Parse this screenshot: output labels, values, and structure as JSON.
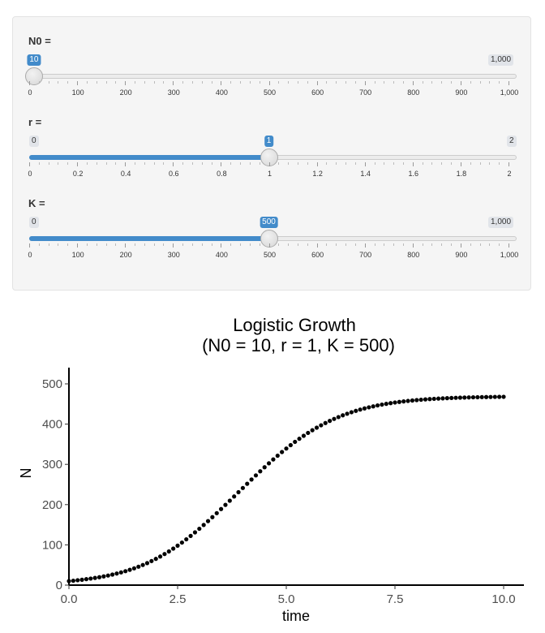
{
  "sliders": [
    {
      "label": "N0 =",
      "min": 0,
      "max": 1000,
      "min_label": "",
      "max_label": "1,000",
      "value": 10,
      "value_label": "10",
      "ticks": [
        "0",
        "100",
        "200",
        "300",
        "400",
        "500",
        "600",
        "700",
        "800",
        "900",
        "1,000"
      ]
    },
    {
      "label": "r =",
      "min": 0,
      "max": 2,
      "min_label": "0",
      "max_label": "2",
      "value": 1,
      "value_label": "1",
      "ticks": [
        "0",
        "0.2",
        "0.4",
        "0.6",
        "0.8",
        "1",
        "1.2",
        "1.4",
        "1.6",
        "1.8",
        "2"
      ]
    },
    {
      "label": "K =",
      "min": 0,
      "max": 1000,
      "min_label": "0",
      "max_label": "1,000",
      "value": 500,
      "value_label": "500",
      "ticks": [
        "0",
        "100",
        "200",
        "300",
        "400",
        "500",
        "600",
        "700",
        "800",
        "900",
        "1,000"
      ]
    }
  ],
  "chart_data": {
    "type": "scatter",
    "title": "Logistic Growth",
    "subtitle": "(N0 = 10, r = 1, K = 500)",
    "xlabel": "time",
    "ylabel": "N",
    "xlim": [
      0,
      10
    ],
    "ylim": [
      0,
      500
    ],
    "xticks": [
      "0.0",
      "2.5",
      "5.0",
      "7.5",
      "10.0"
    ],
    "yticks": [
      "0",
      "100",
      "200",
      "300",
      "400",
      "500"
    ],
    "N0": 10,
    "r": 1,
    "K": 500,
    "t_step": 0.1,
    "series": [
      {
        "values": [
          10.0,
          11.0,
          12.2,
          13.4,
          14.8,
          16.3,
          17.9,
          19.7,
          21.7,
          23.8,
          26.2,
          28.8,
          31.6,
          34.7,
          38.1,
          41.7,
          45.7,
          50.0,
          54.7,
          59.8,
          65.2,
          71.0,
          77.2,
          83.7,
          90.7,
          98.0,
          105.7,
          113.8,
          122.2,
          131.0,
          140.0,
          149.4,
          159.0,
          168.8,
          178.8,
          189.0,
          199.3,
          209.7,
          220.2,
          230.8,
          241.3,
          251.8,
          262.3,
          272.6,
          282.8,
          292.8,
          302.6,
          312.2,
          321.5,
          330.6,
          339.3,
          347.8,
          355.9,
          363.6,
          371.0,
          378.1,
          384.8,
          391.1,
          397.1,
          402.7,
          408.0,
          412.9,
          417.5,
          421.8,
          425.8,
          429.5,
          432.9,
          436.1,
          439.0,
          441.7,
          444.1,
          446.4,
          448.5,
          450.4,
          452.1,
          453.7,
          455.1,
          456.4,
          457.6,
          458.7,
          459.7,
          460.6,
          461.4,
          462.2,
          462.8,
          463.4,
          464.0,
          464.5,
          464.9,
          465.3,
          465.7,
          466.0,
          466.3,
          466.6,
          466.8,
          467.1,
          467.2,
          467.4,
          467.6,
          467.7,
          467.8
        ]
      }
    ]
  }
}
